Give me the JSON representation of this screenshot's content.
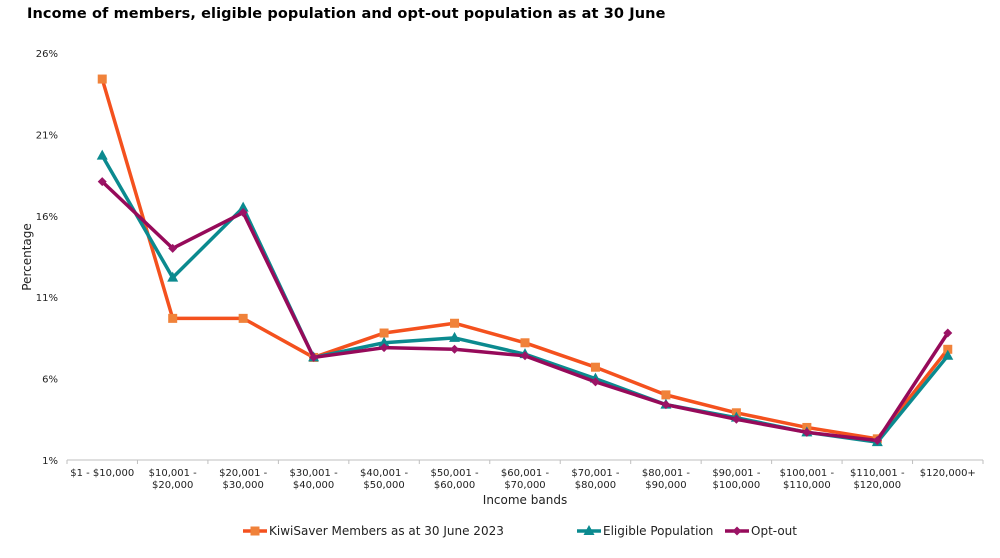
{
  "chart_data": {
    "type": "line",
    "title": "Income of members, eligible population and opt-out population as at 30 June",
    "xlabel": "Income bands",
    "ylabel": "Percentage",
    "ylim": [
      1,
      26
    ],
    "yticks": [
      1,
      6,
      11,
      16,
      21,
      26
    ],
    "ytick_labels": [
      "1%",
      "6%",
      "11%",
      "16%",
      "21%",
      "26%"
    ],
    "grid": false,
    "legend_position": "bottom",
    "categories": [
      [
        "$1 - $10,000"
      ],
      [
        "$10,001 -",
        "$20,000"
      ],
      [
        "$20,001 -",
        "$30,000"
      ],
      [
        "$30,001 -",
        "$40,000"
      ],
      [
        "$40,001 -",
        "$50,000"
      ],
      [
        "$50,001 -",
        "$60,000"
      ],
      [
        "$60,001 -",
        "$70,000"
      ],
      [
        "$70,001 -",
        "$80,000"
      ],
      [
        "$80,001 -",
        "$90,000"
      ],
      [
        "$90,001 -",
        "$100,000"
      ],
      [
        "$100,001 -",
        "$110,000"
      ],
      [
        "$110,001 -",
        "$120,000"
      ],
      [
        "$120,000+"
      ]
    ],
    "series": [
      {
        "name": "KiwiSaver Members as at 30 June 2023",
        "color": "#f4511e",
        "marker_color": "#f0823a",
        "marker": "square",
        "values": [
          24.4,
          9.7,
          9.7,
          7.3,
          8.8,
          9.4,
          8.2,
          6.7,
          5.0,
          3.9,
          3.0,
          2.3,
          7.8
        ]
      },
      {
        "name": "Eligible Population",
        "color": "#0b8a8f",
        "marker_color": "#0b8a8f",
        "marker": "triangle",
        "values": [
          19.7,
          12.2,
          16.5,
          7.3,
          8.2,
          8.5,
          7.5,
          6.0,
          4.4,
          3.6,
          2.7,
          2.1,
          7.4
        ]
      },
      {
        "name": "Opt-out",
        "color": "#960a5a",
        "marker_color": "#9b1466",
        "marker": "diamond",
        "values": [
          18.1,
          14.0,
          16.2,
          7.3,
          7.9,
          7.8,
          7.4,
          5.8,
          4.4,
          3.5,
          2.7,
          2.2,
          8.8
        ]
      }
    ]
  }
}
